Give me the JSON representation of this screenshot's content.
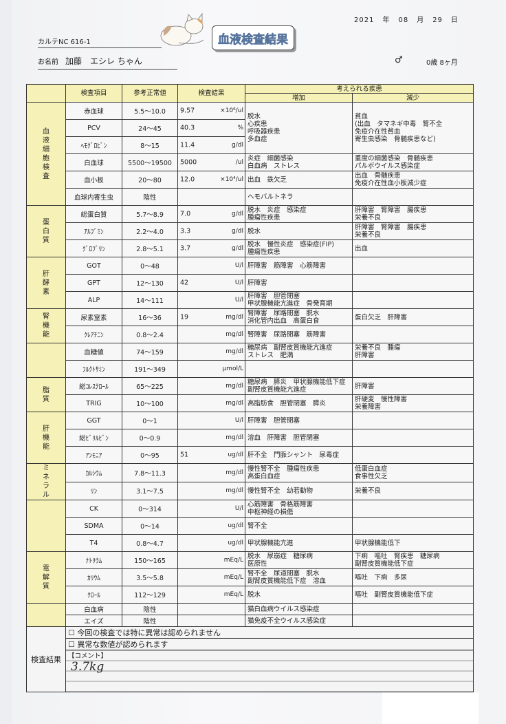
{
  "header": {
    "date": {
      "year": "2021",
      "year_label": "年",
      "month": "08",
      "month_label": "月",
      "day": "29",
      "day_label": "日"
    },
    "karte": "カルテNC 616-1",
    "title": "血液検査結果",
    "name_label": "お名前",
    "name": "加藤　エシレ ちゃん",
    "sex": "♂",
    "age": "0歳 8ヶ月"
  },
  "table": {
    "headers": {
      "item": "検査項目",
      "reference": "参考正常値",
      "result": "検査結果",
      "diseases": "考えられる疾患",
      "increase": "増加",
      "decrease": "減少"
    },
    "groups": [
      {
        "label": "血液細胞検査",
        "rows": [
          {
            "item": "赤血球",
            "ref": "5.5〜10.0",
            "value": "9.57",
            "unit": "×10⁶/ul",
            "increase": "脱水\n心疾患\n呼吸器疾患\n多血症",
            "decrease": "貧血\n(出血　タマネギ中毒　腎不全\n免疫介在性貧血\n寄生虫感染　骨髄疾患など)",
            "merged_rows": 3
          },
          {
            "item": "PCV",
            "ref": "24〜45",
            "value": "40.3",
            "unit": "%"
          },
          {
            "item": "ﾍﾓｸﾞﾛﾋﾞﾝ",
            "ref": "8〜15",
            "value": "11.4",
            "unit": "g/dl"
          },
          {
            "item": "白血球",
            "ref": "5500〜19500",
            "value": "5000",
            "unit": "/ul",
            "increase": "炎症　細菌感染\n白血病　ストレス",
            "decrease": "重度の細菌感染　骨髄疾患\nパルボウイルス感染症"
          },
          {
            "item": "血小板",
            "ref": "20〜80",
            "value": "12.0",
            "unit": "×10⁴/ul",
            "increase": "出血　鉄欠乏",
            "decrease": "出血　骨髄疾患\n免疫介在性血小板減少症"
          },
          {
            "item": "血球内寄生虫",
            "ref": "陰性",
            "value": "",
            "unit": "",
            "increase": "ヘモバルトネラ",
            "decrease": ""
          }
        ]
      },
      {
        "label": "蛋白質",
        "rows": [
          {
            "item": "総蛋白質",
            "ref": "5.7〜8.9",
            "value": "7.0",
            "unit": "g/dl",
            "increase": "脱水　炎症　感染症\n腫瘍性疾患",
            "decrease": "肝障害　腎障害　腸疾患\n栄養不良"
          },
          {
            "item": "ｱﾙﾌﾞﾐﾝ",
            "ref": "2.2〜4.0",
            "value": "3.3",
            "unit": "g/dl",
            "increase": "脱水",
            "decrease": "肝障害　腎障害　腸疾患\n栄養不良"
          },
          {
            "item": "ｸﾞﾛﾌﾞﾘﾝ",
            "ref": "2.8〜5.1",
            "value": "3.7",
            "unit": "g/dl",
            "increase": "脱水　慢性炎症　感染症(FIP)\n腫瘍性疾患",
            "decrease": "出血"
          }
        ]
      },
      {
        "label": "肝酵素",
        "rows": [
          {
            "item": "GOT",
            "ref": "0〜48",
            "value": "",
            "unit": "U/l",
            "increase": "肝障害　筋障害　心筋障害",
            "decrease": ""
          },
          {
            "item": "GPT",
            "ref": "12〜130",
            "value": "42",
            "unit": "U/l",
            "increase": "肝障害",
            "decrease": ""
          },
          {
            "item": "ALP",
            "ref": "14〜111",
            "value": "",
            "unit": "U/l",
            "increase": "肝障害　胆管閉塞\n甲状腺機能亢進症　骨発育期",
            "decrease": ""
          }
        ]
      },
      {
        "label": "腎機能",
        "rows": [
          {
            "item": "尿素窒素",
            "ref": "16〜36",
            "value": "19",
            "unit": "mg/dl",
            "increase": "腎障害　尿路閉塞　脱水\n消化管内出血　高蛋白食",
            "decrease": "蛋白欠乏　肝障害"
          },
          {
            "item": "ｸﾚｱﾁﾆﾝ",
            "ref": "0.8〜2.4",
            "value": "",
            "unit": "mg/dl",
            "increase": "腎障害　尿路閉塞　筋障害",
            "decrease": ""
          }
        ]
      },
      {
        "label": "",
        "rows": [
          {
            "item": "血糖値",
            "ref": "74〜159",
            "value": "",
            "unit": "mg/dl",
            "increase": "糖尿病　副腎皮質機能亢進症\nストレス　肥満",
            "decrease": "栄養不良　腫瘍\n肝障害"
          },
          {
            "item": "ﾌﾙｸﾄｻﾐﾝ",
            "ref": "191〜349",
            "value": "",
            "unit": "μmol/L",
            "increase": "",
            "decrease": ""
          }
        ]
      },
      {
        "label": "脂質",
        "rows": [
          {
            "item": "総ｺﾚｽﾃﾛｰﾙ",
            "ref": "65〜225",
            "value": "",
            "unit": "mg/dl",
            "increase": "糖尿病　膵炎　甲状腺機能低下症\n副腎皮質機能亢進症",
            "decrease": "肝障害"
          },
          {
            "item": "TRIG",
            "ref": "10〜100",
            "value": "",
            "unit": "mg/dl",
            "increase": "高脂肪食　胆管閉塞　膵炎",
            "decrease": "肝硬変　慢性障害\n栄養障害"
          }
        ]
      },
      {
        "label": "肝機能",
        "rows": [
          {
            "item": "GGT",
            "ref": "0〜1",
            "value": "",
            "unit": "U/l",
            "increase": "肝障害　胆管閉塞",
            "decrease": ""
          },
          {
            "item": "総ﾋﾞﾘﾙﾋﾞﾝ",
            "ref": "0〜0.9",
            "value": "",
            "unit": "mg/dl",
            "increase": "溶血　肝障害　胆管閉塞",
            "decrease": ""
          },
          {
            "item": "ｱﾝﾓﾆｱ",
            "ref": "0〜95",
            "value": "51",
            "unit": "ug/dl",
            "increase": "肝不全　門脈シャント　尿毒症",
            "decrease": ""
          }
        ]
      },
      {
        "label": "ミネラル",
        "rows": [
          {
            "item": "ｶﾙｼｳﾑ",
            "ref": "7.8〜11.3",
            "value": "",
            "unit": "mg/dl",
            "increase": "慢性腎不全　腫瘍性疾患\n高蛋白血症",
            "decrease": "低蛋白血症\n食事性欠乏"
          },
          {
            "item": "ﾘﾝ",
            "ref": "3.1〜7.5",
            "value": "",
            "unit": "mg/dl",
            "increase": "慢性腎不全　幼若動物",
            "decrease": "栄養不良"
          }
        ]
      },
      {
        "label": "",
        "rows": [
          {
            "item": "CK",
            "ref": "0〜314",
            "value": "",
            "unit": "U/l",
            "increase": "心筋障害　骨格筋障害\n中枢神経の損傷",
            "decrease": ""
          },
          {
            "item": "SDMA",
            "ref": "0〜14",
            "value": "",
            "unit": "ug/dl",
            "increase": "腎不全",
            "decrease": ""
          },
          {
            "item": "T4",
            "ref": "0.8〜4.7",
            "value": "",
            "unit": "ug/dl",
            "increase": "甲状腺機能亢進",
            "decrease": "甲状腺機能低下"
          }
        ]
      },
      {
        "label": "電解質",
        "rows": [
          {
            "item": "ﾅﾄﾘｳﾑ",
            "ref": "150〜165",
            "value": "",
            "unit": "mEq/L",
            "increase": "脱水　尿崩症　糖尿病\n医原性",
            "decrease": "下痢　嘔吐　腎疾患　糖尿病\n副腎皮質機能低下症"
          },
          {
            "item": "ｶﾘｳﾑ",
            "ref": "3.5〜5.8",
            "value": "",
            "unit": "mEq/L",
            "increase": "腎不全　尿道閉塞　脱水\n副腎皮質機能低下症　溶血",
            "decrease": "嘔吐　下痢　多尿"
          },
          {
            "item": "ｸﾛｰﾙ",
            "ref": "112〜129",
            "value": "",
            "unit": "mEq/L",
            "increase": "脱水",
            "decrease": "嘔吐　副腎皮質機能低下症"
          }
        ]
      }
    ],
    "viral": [
      {
        "item": "白血病",
        "ref": "陰性",
        "value": "",
        "increase": "猫白血病ウイルス感染症",
        "decrease": ""
      },
      {
        "item": "エイズ",
        "ref": "陰性",
        "value": "",
        "increase": "猫免疫不全ウイルス感染症",
        "decrease": ""
      }
    ]
  },
  "summary": {
    "label": "検査結果",
    "checkbox_normal": {
      "label": "今回の検査では特に異常は認められません",
      "checked": false
    },
    "checkbox_abnormal": {
      "label": "異常な数値が認められます",
      "checked": false
    },
    "comment_label": "【コメント】",
    "comment": "3.7kg"
  },
  "colors": {
    "header_fill": "#f6f1b6",
    "title_text": "#9fb6d4"
  }
}
